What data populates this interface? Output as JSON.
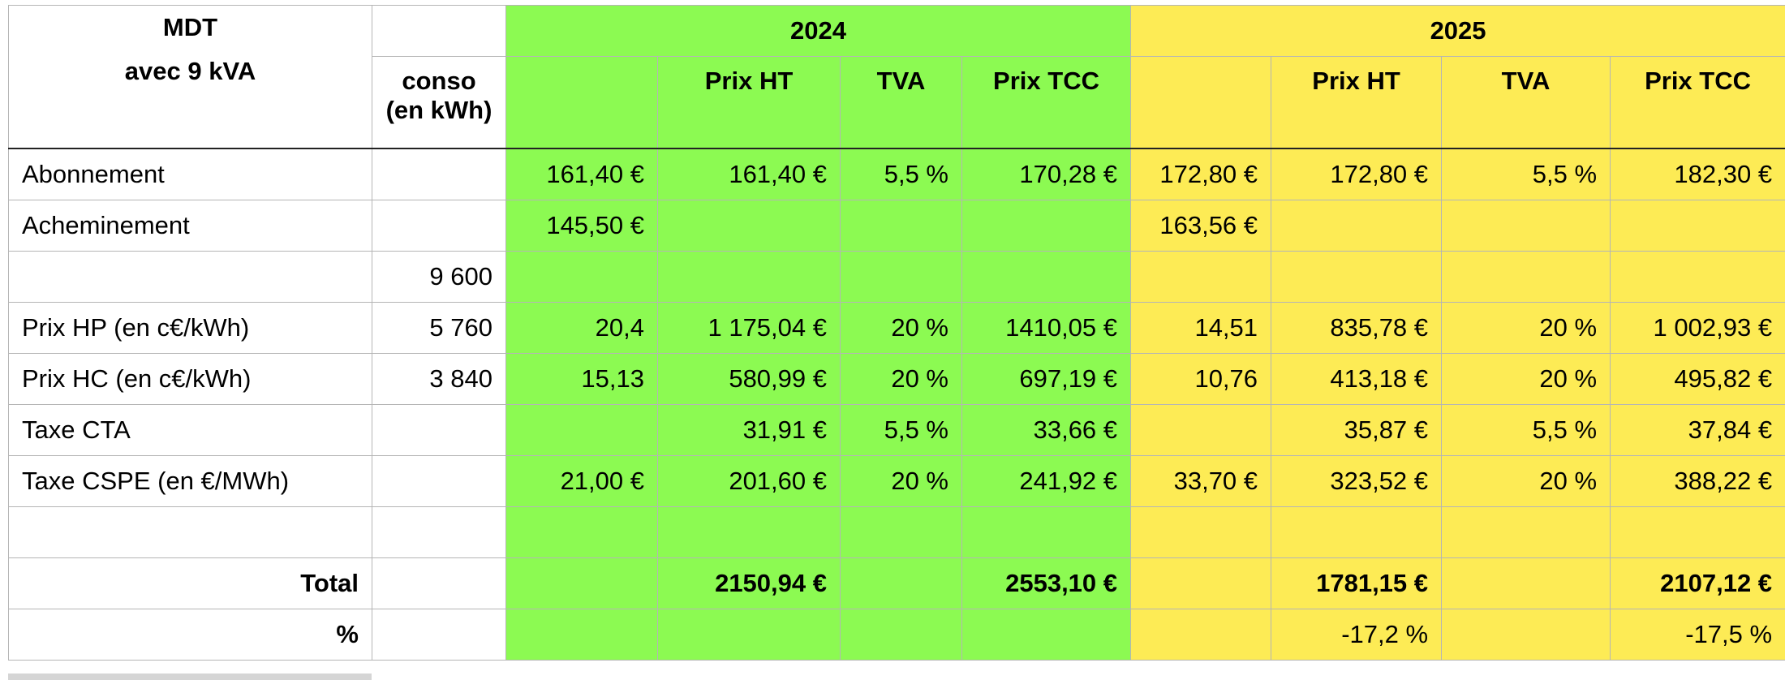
{
  "title": {
    "line1": "MDT",
    "line2": "avec 9 kVA"
  },
  "conso_header": {
    "line1": "conso",
    "line2": "(en kWh)"
  },
  "years": [
    "2024",
    "2025"
  ],
  "col_headers": {
    "prix_ht": "Prix HT",
    "tva": "TVA",
    "prix_ttc": "Prix TCC"
  },
  "rows": [
    {
      "label": "Abonnement",
      "conso": "",
      "y2024": {
        "base": "161,40 €",
        "ht": "161,40 €",
        "tva": "5,5 %",
        "ttc": "170,28 €"
      },
      "y2025": {
        "base": "172,80 €",
        "ht": "172,80 €",
        "tva": "5,5 %",
        "ttc": "182,30 €"
      }
    },
    {
      "label": "Acheminement",
      "conso": "",
      "y2024": {
        "base": "145,50 €",
        "ht": "",
        "tva": "",
        "ttc": ""
      },
      "y2025": {
        "base": "163,56 €",
        "ht": "",
        "tva": "",
        "ttc": ""
      }
    },
    {
      "label": "",
      "conso": "9 600",
      "y2024": {
        "base": "",
        "ht": "",
        "tva": "",
        "ttc": ""
      },
      "y2025": {
        "base": "",
        "ht": "",
        "tva": "",
        "ttc": ""
      }
    },
    {
      "label": "Prix HP (en c€/kWh)",
      "conso": "5 760",
      "y2024": {
        "base": "20,4",
        "ht": "1 175,04 €",
        "tva": "20 %",
        "ttc": "1410,05 €"
      },
      "y2025": {
        "base": "14,51",
        "ht": "835,78 €",
        "tva": "20 %",
        "ttc": "1 002,93 €"
      }
    },
    {
      "label": "Prix HC (en c€/kWh)",
      "conso": "3 840",
      "y2024": {
        "base": "15,13",
        "ht": "580,99 €",
        "tva": "20 %",
        "ttc": "697,19 €"
      },
      "y2025": {
        "base": "10,76",
        "ht": "413,18 €",
        "tva": "20 %",
        "ttc": "495,82 €"
      }
    },
    {
      "label": "Taxe CTA",
      "conso": "",
      "y2024": {
        "base": "",
        "ht": "31,91 €",
        "tva": "5,5 %",
        "ttc": "33,66 €"
      },
      "y2025": {
        "base": "",
        "ht": "35,87 €",
        "tva": "5,5 %",
        "ttc": "37,84 €"
      }
    },
    {
      "label": "Taxe CSPE (en €/MWh)",
      "conso": "",
      "y2024": {
        "base": "21,00 €",
        "ht": "201,60 €",
        "tva": "20 %",
        "ttc": "241,92 €"
      },
      "y2025": {
        "base": "33,70 €",
        "ht": "323,52 €",
        "tva": "20 %",
        "ttc": "388,22 €"
      }
    },
    {
      "label": "",
      "conso": "",
      "y2024": {
        "base": "",
        "ht": "",
        "tva": "",
        "ttc": ""
      },
      "y2025": {
        "base": "",
        "ht": "",
        "tva": "",
        "ttc": ""
      }
    }
  ],
  "total": {
    "label": "Total",
    "y2024": {
      "ht": "2150,94 €",
      "ttc": "2553,10 €"
    },
    "y2025": {
      "ht": "1781,15 €",
      "ttc": "2107,12 €"
    }
  },
  "percent": {
    "label": "%",
    "y2025": {
      "ht": "-17,2 %",
      "ttc": "-17,5 %"
    }
  },
  "colors": {
    "col2024": "#8cfa52",
    "col2025": "#fdeb55",
    "grid": "#b5b5b5"
  }
}
